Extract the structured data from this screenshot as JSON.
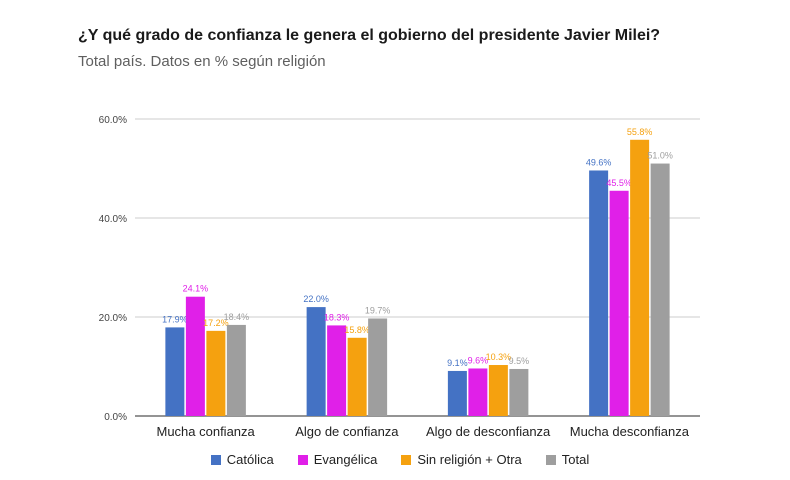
{
  "title": "¿Y qué grado de confianza le genera el gobierno del presidente Javier Milei?",
  "subtitle": "Total país. Datos en % según religión",
  "colors": {
    "catolica": "#4472c4",
    "evangelica": "#e020e8",
    "sin_religion": "#f5a10f",
    "total": "#9e9e9e"
  },
  "chart_data": {
    "type": "bar",
    "title": "¿Y qué grado de confianza le genera el gobierno del presidente Javier Milei?",
    "subtitle": "Total país. Datos en % según religión",
    "categories": [
      "Mucha confianza",
      "Algo de confianza",
      "Algo de desconfianza",
      "Mucha desconfianza"
    ],
    "series": [
      {
        "name": "Católica",
        "color": "#4472c4",
        "values": [
          17.9,
          22.0,
          9.1,
          49.6
        ],
        "labels": [
          "17.9%",
          "22.0%",
          "9.1%",
          "49.6%"
        ]
      },
      {
        "name": "Evangélica",
        "color": "#e020e8",
        "values": [
          24.1,
          18.3,
          9.6,
          45.5
        ],
        "labels": [
          "24.1%",
          "18.3%",
          "9.6%",
          "45.5%"
        ]
      },
      {
        "name": "Sin religión + Otra",
        "color": "#f5a10f",
        "values": [
          17.2,
          15.8,
          10.3,
          55.8
        ],
        "labels": [
          "17.2%",
          "15.8%",
          "10.3%",
          "55.8%"
        ]
      },
      {
        "name": "Total",
        "color": "#9e9e9e",
        "values": [
          18.4,
          19.7,
          9.5,
          51.0
        ],
        "labels": [
          "18.4%",
          "19.7%",
          "9.5%",
          "51.0%"
        ]
      }
    ],
    "yticks": [
      "0.0%",
      "20.0%",
      "40.0%",
      "60.0%"
    ],
    "ytick_values": [
      0,
      20,
      40,
      60
    ],
    "ylim": [
      0,
      60
    ],
    "grid": true,
    "legend_position": "bottom"
  }
}
